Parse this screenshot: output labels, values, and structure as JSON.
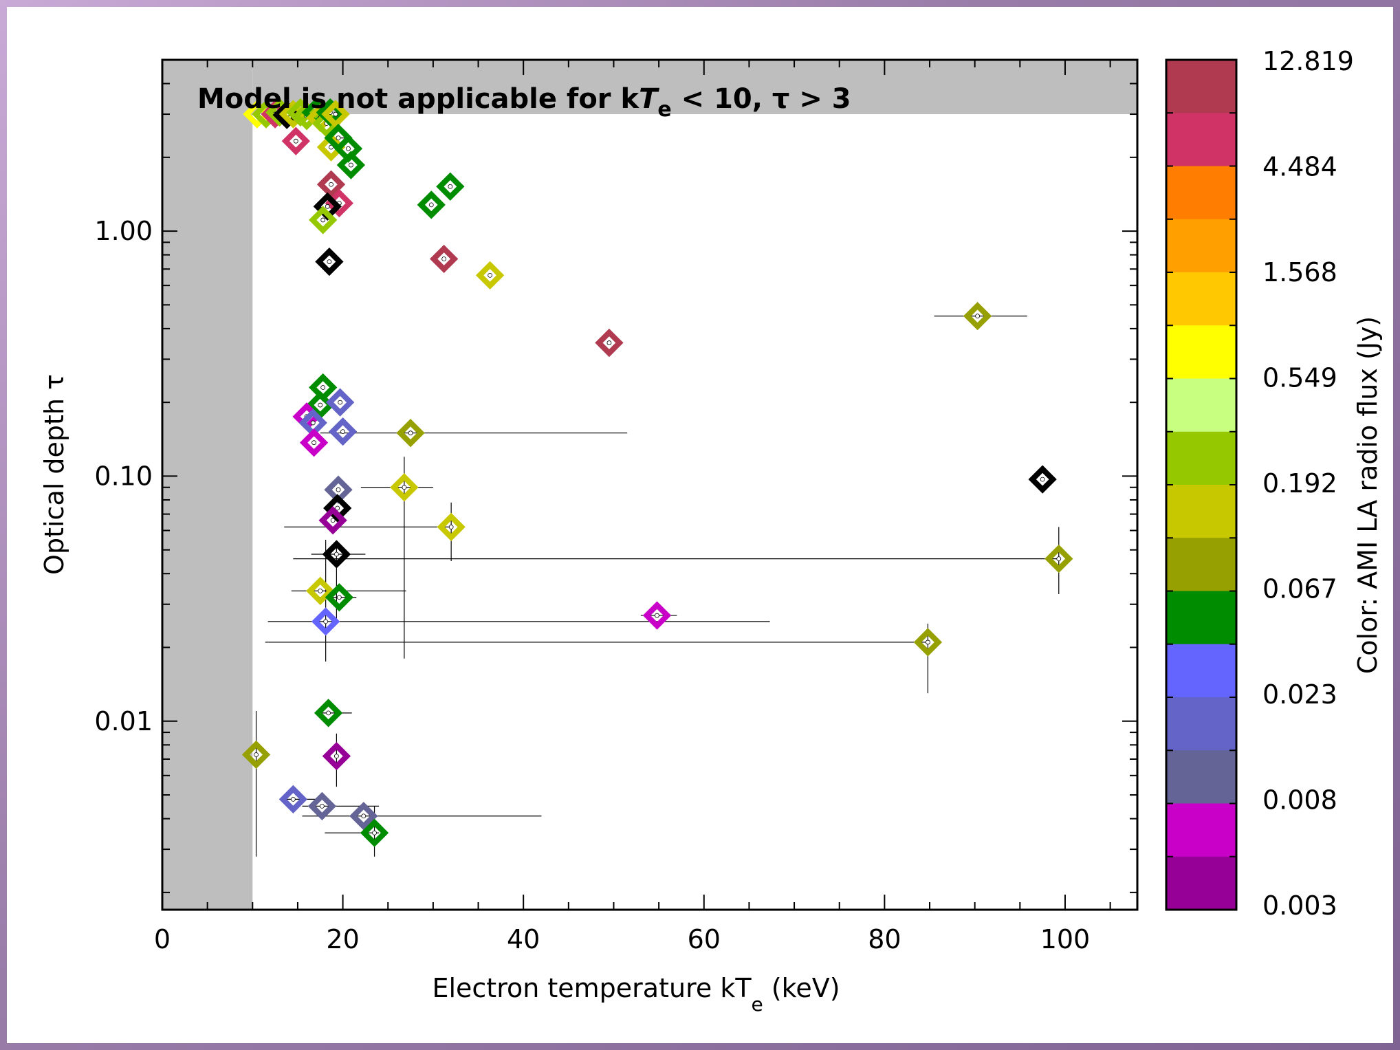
{
  "chart_data": {
    "type": "scatter",
    "xlabel": "Electron temperature kT_e (keV)",
    "xlabel_parts": {
      "main": "Electron temperature kT",
      "sub": "e",
      "tail": " (keV)"
    },
    "ylabel": "Optical depth τ",
    "annotation": "Model is not applicable for kTe < 10,  τ > 3",
    "annotation_parts": {
      "a": "Model is not applicable for k",
      "T": "T",
      "sub": "e",
      "b": " < 10,  τ > 3"
    },
    "xlim": [
      0,
      108
    ],
    "ylim": [
      0.0017,
      5.0
    ],
    "yscale": "log",
    "xticks": [
      0,
      20,
      40,
      60,
      80,
      100
    ],
    "xtick_labels": [
      "0",
      "20",
      "40",
      "60",
      "80",
      "100"
    ],
    "yticks": [
      0.01,
      0.1,
      1.0
    ],
    "ytick_labels": [
      "0.01",
      "0.10",
      "1.00"
    ],
    "excluded_regions": [
      {
        "x": [
          0,
          10
        ],
        "y": [
          0.0017,
          5.0
        ]
      },
      {
        "x": [
          10,
          108
        ],
        "y": [
          3,
          5.0
        ]
      }
    ],
    "colorbar": {
      "label": "Color: AMI LA radio flux (Jy)",
      "tick_labels": [
        "12.819",
        "4.484",
        "1.568",
        "0.549",
        "0.192",
        "0.067",
        "0.023",
        "0.008",
        "0.003"
      ],
      "colors": [
        "#b03a50",
        "#d03466",
        "#ff7d00",
        "#ff9f00",
        "#ffc800",
        "#ffff00",
        "#c8ff80",
        "#96c800",
        "#c8c800",
        "#96a000",
        "#008c00",
        "#6464ff",
        "#6464c8",
        "#646496",
        "#c800c8",
        "#960096"
      ]
    },
    "points": [
      {
        "x": 10.5,
        "y": 3.0,
        "c": "#ffff00"
      },
      {
        "x": 11.5,
        "y": 3.0,
        "c": "#96c800"
      },
      {
        "x": 12.5,
        "y": 3.0,
        "c": "#d03466"
      },
      {
        "x": 13.0,
        "y": 3.05,
        "c": "#96c800"
      },
      {
        "x": 13.8,
        "y": 2.98,
        "c": "#000000"
      },
      {
        "x": 14.5,
        "y": 3.0,
        "c": "#c8c800"
      },
      {
        "x": 15.3,
        "y": 3.05,
        "c": "#96c800"
      },
      {
        "x": 16.0,
        "y": 2.95,
        "c": "#96c800"
      },
      {
        "x": 17.0,
        "y": 3.05,
        "c": "#008c00"
      },
      {
        "x": 17.5,
        "y": 2.9,
        "c": "#c8c800"
      },
      {
        "x": 18.2,
        "y": 2.75,
        "c": "#96c800"
      },
      {
        "x": 18.6,
        "y": 3.05,
        "c": "#008c00"
      },
      {
        "x": 19.2,
        "y": 3.0,
        "c": "#c8c800"
      },
      {
        "x": 18.7,
        "y": 2.2,
        "c": "#c8c800"
      },
      {
        "x": 14.8,
        "y": 2.33,
        "c": "#d03466"
      },
      {
        "x": 19.5,
        "y": 2.4,
        "c": "#008c00",
        "xerr": [
          18.0,
          21.0
        ]
      },
      {
        "x": 20.6,
        "y": 2.17,
        "c": "#008c00"
      },
      {
        "x": 20.9,
        "y": 1.86,
        "c": "#008c00"
      },
      {
        "x": 18.7,
        "y": 1.55,
        "c": "#b03a50"
      },
      {
        "x": 19.6,
        "y": 1.3,
        "c": "#d03466"
      },
      {
        "x": 18.3,
        "y": 1.26,
        "c": "#000000"
      },
      {
        "x": 17.8,
        "y": 1.11,
        "c": "#96c800"
      },
      {
        "x": 18.5,
        "y": 0.75,
        "c": "#000000"
      },
      {
        "x": 29.8,
        "y": 1.28,
        "c": "#008c00"
      },
      {
        "x": 31.9,
        "y": 1.52,
        "c": "#008c00"
      },
      {
        "x": 31.2,
        "y": 0.77,
        "c": "#b03a50"
      },
      {
        "x": 36.3,
        "y": 0.66,
        "c": "#c8c800"
      },
      {
        "x": 49.5,
        "y": 0.35,
        "c": "#b03a50"
      },
      {
        "x": 90.3,
        "y": 0.45,
        "c": "#96a000",
        "xerr": [
          85.5,
          95.8
        ]
      },
      {
        "x": 97.5,
        "y": 0.097,
        "c": "#000000"
      },
      {
        "x": 17.8,
        "y": 0.23,
        "c": "#008c00"
      },
      {
        "x": 17.5,
        "y": 0.195,
        "c": "#008c00"
      },
      {
        "x": 19.7,
        "y": 0.2,
        "c": "#6464c8"
      },
      {
        "x": 16.0,
        "y": 0.175,
        "c": "#c800c8"
      },
      {
        "x": 16.7,
        "y": 0.165,
        "c": "#6464c8"
      },
      {
        "x": 20.0,
        "y": 0.152,
        "c": "#6464c8"
      },
      {
        "x": 16.8,
        "y": 0.137,
        "c": "#c800c8"
      },
      {
        "x": 27.5,
        "y": 0.15,
        "c": "#96a000",
        "xerr": [
          17.5,
          51.5
        ]
      },
      {
        "x": 26.8,
        "y": 0.09,
        "c": "#c8c800",
        "xerr": [
          22.0,
          30.0
        ],
        "yerr": [
          0.018,
          0.12
        ]
      },
      {
        "x": 19.5,
        "y": 0.088,
        "c": "#646496"
      },
      {
        "x": 19.4,
        "y": 0.074,
        "c": "#000000"
      },
      {
        "x": 18.9,
        "y": 0.066,
        "c": "#960096"
      },
      {
        "x": 32.0,
        "y": 0.062,
        "c": "#c8c800",
        "xerr": [
          13.5,
          32.0
        ],
        "yerr": [
          0.045,
          0.078
        ]
      },
      {
        "x": 19.3,
        "y": 0.048,
        "c": "#000000",
        "xerr": [
          16.5,
          22.5
        ],
        "yerr": [
          0.025,
          0.054
        ]
      },
      {
        "x": 99.3,
        "y": 0.046,
        "c": "#96a000",
        "xerr": [
          14.5,
          99.5
        ],
        "yerr": [
          0.033,
          0.062
        ]
      },
      {
        "x": 17.5,
        "y": 0.034,
        "c": "#c8c800",
        "xerr": [
          14.3,
          27.0
        ]
      },
      {
        "x": 19.6,
        "y": 0.032,
        "c": "#008c00",
        "xerr": [
          17.0,
          21.5
        ]
      },
      {
        "x": 54.8,
        "y": 0.027,
        "c": "#c800c8",
        "xerr": [
          53.0,
          57.0
        ]
      },
      {
        "x": 18.1,
        "y": 0.0255,
        "c": "#6464ff",
        "xerr": [
          11.7,
          67.3
        ],
        "yerr": [
          0.0175,
          0.055
        ]
      },
      {
        "x": 84.8,
        "y": 0.021,
        "c": "#96a000",
        "xerr": [
          11.4,
          84.8
        ],
        "yerr": [
          0.013,
          0.025
        ]
      },
      {
        "x": 18.4,
        "y": 0.0108,
        "c": "#008c00",
        "xerr": [
          17.0,
          21.0
        ]
      },
      {
        "x": 10.4,
        "y": 0.0073,
        "c": "#96a000",
        "yerr": [
          0.0028,
          0.011
        ]
      },
      {
        "x": 19.3,
        "y": 0.0072,
        "c": "#960096",
        "yerr": [
          0.0054,
          0.0089
        ]
      },
      {
        "x": 14.5,
        "y": 0.0048,
        "c": "#6464c8",
        "xerr": [
          13.5,
          18.0
        ]
      },
      {
        "x": 17.7,
        "y": 0.0045,
        "c": "#646496",
        "xerr": [
          15.5,
          24.0
        ]
      },
      {
        "x": 22.3,
        "y": 0.0041,
        "c": "#646496",
        "xerr": [
          15.5,
          42.0
        ]
      },
      {
        "x": 23.5,
        "y": 0.0035,
        "c": "#008c00",
        "xerr": [
          18.0,
          24.0
        ],
        "yerr": [
          0.0028,
          0.0045
        ]
      }
    ]
  }
}
